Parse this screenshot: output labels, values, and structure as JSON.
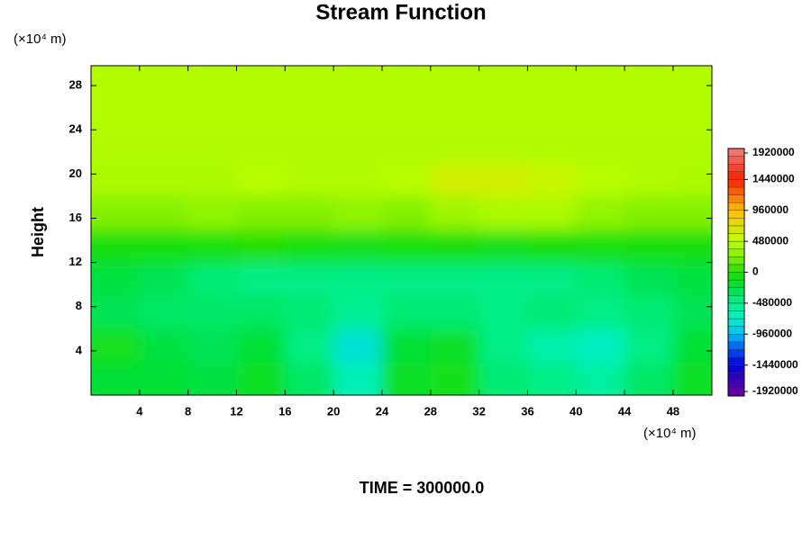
{
  "chart_data": {
    "type": "contour",
    "title": "Stream Function",
    "x_unit_label": "(×10⁴ m)",
    "y_unit_label": "(×10⁴ m)",
    "y_label": "Height",
    "footer": "TIME = 300000.0",
    "xlim": [
      0,
      51.2
    ],
    "ylim": [
      0,
      29.8
    ],
    "xticks": [
      4,
      8,
      12,
      16,
      20,
      24,
      28,
      32,
      36,
      40,
      44,
      48
    ],
    "yticks": [
      4,
      8,
      12,
      16,
      20,
      24,
      28
    ],
    "x": [
      2,
      6,
      10,
      14,
      18,
      22,
      26,
      30,
      34,
      38,
      42,
      46,
      50
    ],
    "y": [
      1.5,
      4.5,
      7.5,
      10.5,
      13.5,
      16.5,
      19.5,
      22.5,
      25.5,
      28.5
    ],
    "z": [
      [
        -200000,
        -200000,
        -250000,
        -150000,
        -350000,
        -650000,
        -150000,
        -100000,
        -400000,
        -450000,
        -550000,
        -350000,
        -150000
      ],
      [
        -100000,
        -250000,
        -300000,
        -200000,
        -450000,
        -800000,
        -200000,
        -150000,
        -450000,
        -600000,
        -700000,
        -450000,
        -200000
      ],
      [
        -300000,
        -350000,
        -350000,
        -350000,
        -400000,
        -500000,
        -400000,
        -400000,
        -450000,
        -400000,
        -450000,
        -400000,
        -300000
      ],
      [
        -250000,
        -300000,
        -400000,
        -450000,
        -450000,
        -450000,
        -450000,
        -450000,
        -450000,
        -450000,
        -400000,
        -300000,
        -250000
      ],
      [
        -50000,
        -50000,
        -50000,
        0,
        -50000,
        -100000,
        -50000,
        -50000,
        -100000,
        -50000,
        -50000,
        -50000,
        -50000
      ],
      [
        250000,
        250000,
        300000,
        250000,
        250000,
        300000,
        250000,
        350000,
        400000,
        400000,
        300000,
        250000,
        250000
      ],
      [
        400000,
        400000,
        400000,
        450000,
        420000,
        420000,
        450000,
        600000,
        600000,
        550000,
        450000,
        420000,
        400000
      ],
      [
        420000,
        420000,
        420000,
        420000,
        420000,
        420000,
        420000,
        420000,
        420000,
        420000,
        420000,
        420000,
        420000
      ],
      [
        430000,
        430000,
        430000,
        430000,
        430000,
        430000,
        430000,
        430000,
        430000,
        430000,
        430000,
        430000,
        430000
      ],
      [
        430000,
        430000,
        430000,
        430000,
        430000,
        430000,
        430000,
        430000,
        430000,
        430000,
        430000,
        430000,
        430000
      ]
    ],
    "zlim": [
      -1920000,
      1920000
    ],
    "zticks": [
      -1920000,
      -1440000,
      -960000,
      -480000,
      0,
      480000,
      960000,
      1440000,
      1920000
    ],
    "colorscale": [
      [
        -1920000,
        "#7000a0"
      ],
      [
        -1440000,
        "#0000d0"
      ],
      [
        -1200000,
        "#0050ff"
      ],
      [
        -960000,
        "#00c0f0"
      ],
      [
        -720000,
        "#00f0c8"
      ],
      [
        -480000,
        "#00f090"
      ],
      [
        -240000,
        "#00e040"
      ],
      [
        0,
        "#20e000"
      ],
      [
        240000,
        "#80f000"
      ],
      [
        480000,
        "#c0ff00"
      ],
      [
        960000,
        "#ffc000"
      ],
      [
        1440000,
        "#ff2000"
      ],
      [
        1920000,
        "#f08080"
      ]
    ]
  }
}
